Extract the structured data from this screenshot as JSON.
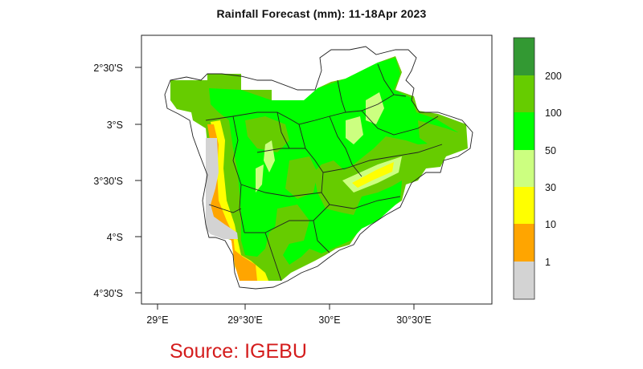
{
  "title": "Rainfall Forecast (mm): 11-18Apr 2023",
  "source": "Source: IGEBU",
  "lat_ticks": [
    "2°30'S",
    "3°S",
    "3°30'S",
    "4°S",
    "4°30'S"
  ],
  "lon_ticks": [
    "29°E",
    "29°30'E",
    "30°E",
    "30°30'E"
  ],
  "legend": {
    "bins": [
      {
        "color": "#d3d3d3"
      },
      {
        "color": "#ffa500"
      },
      {
        "color": "#ffff00"
      },
      {
        "color": "#ccff80"
      },
      {
        "color": "#00ff00"
      },
      {
        "color": "#66cc00"
      },
      {
        "color": "#339933"
      }
    ],
    "labels": [
      "1",
      "10",
      "30",
      "50",
      "100",
      "200"
    ]
  },
  "colors": {
    "dark_green": "#339933",
    "medium_green": "#66cc00",
    "bright_green": "#00ff00",
    "light_green": "#ccff80",
    "yellow": "#ffff00",
    "orange": "#ffa500",
    "gray": "#d3d3d3",
    "source_red": "#d41c1c"
  }
}
